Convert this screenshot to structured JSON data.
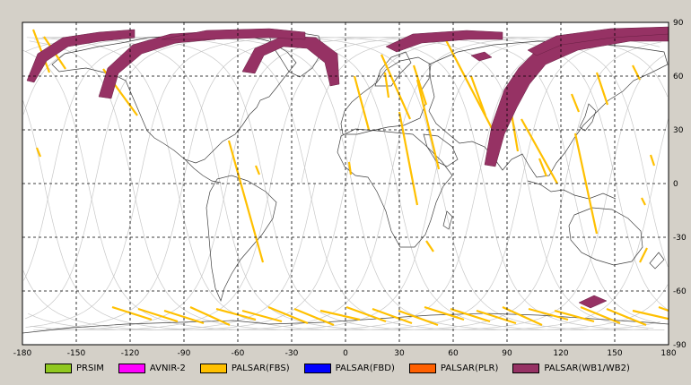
{
  "map": {
    "lon_range": [
      -180,
      180
    ],
    "lat_range": [
      -90,
      90
    ],
    "lon_ticks": [
      "-180",
      "-150",
      "-120",
      "-90",
      "-60",
      "-30",
      "0",
      "30",
      "60",
      "90",
      "120",
      "150",
      "180"
    ],
    "lat_ticks": [
      "90",
      "60",
      "30",
      "0",
      "-30",
      "-60",
      "-90"
    ],
    "grid": "dashed",
    "background_color": "#ffffff",
    "coastline_color": "#404040",
    "orbit_color": "#c8c8c8"
  },
  "legend": {
    "items": [
      {
        "label": "PRSIM",
        "color": "#90c820"
      },
      {
        "label": "AVNIR-2",
        "color": "#ff00ff"
      },
      {
        "label": "PALSAR(FBS)",
        "color": "#ffc000"
      },
      {
        "label": "PALSAR(FBD)",
        "color": "#0000ff"
      },
      {
        "label": "PALSAR(PLR)",
        "color": "#ff6000"
      },
      {
        "label": "PALSAR(WB1/WB2)",
        "color": "#963264"
      }
    ]
  }
}
